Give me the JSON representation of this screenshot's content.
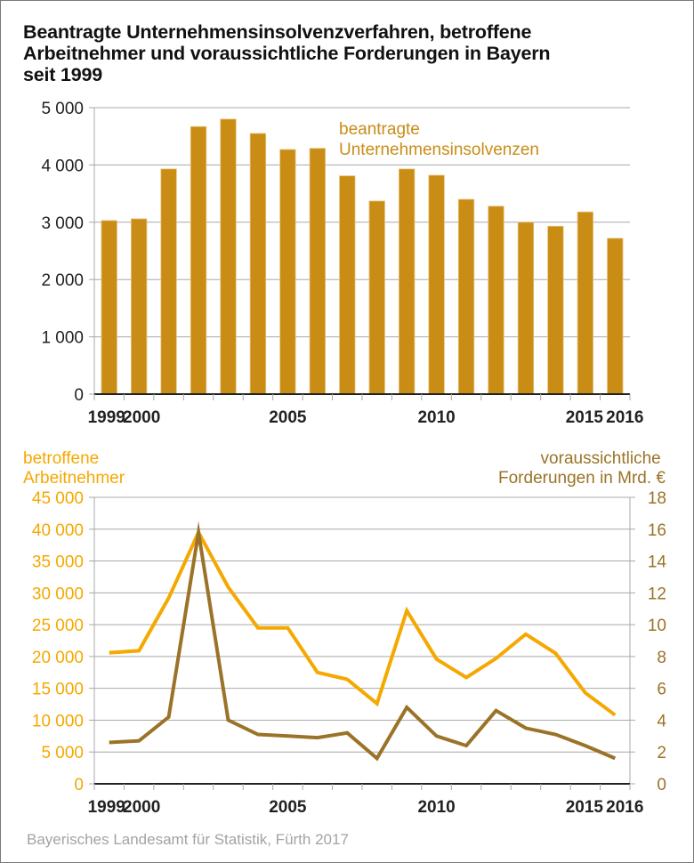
{
  "title_lines": [
    "Beantragte Unternehmensinsolvenzverfahren, betroffene",
    "Arbeitnehmer und voraussichtliche Forderungen in Bayern",
    "seit 1999"
  ],
  "source": "Bayerisches Landesamt für Statistik, Fürth 2017",
  "colors": {
    "bars": "#C98D16",
    "bar_edge": "#E8C27A",
    "employees_line": "#F5A800",
    "claims_line": "#9B7328",
    "grid": "#a8a8a8",
    "axis": "#222222",
    "tick_text": "#222222"
  },
  "chart_data": [
    {
      "type": "bar",
      "title": "Beantragte Unternehmensinsolvenzverfahren in Bayern seit 1999",
      "series_label_lines": [
        "beantragte",
        "Unternehmensinsolvenzen"
      ],
      "categories": [
        "1999",
        "2000",
        "2001",
        "2002",
        "2003",
        "2004",
        "2005",
        "2006",
        "2007",
        "2008",
        "2009",
        "2010",
        "2011",
        "2012",
        "2013",
        "2014",
        "2015",
        "2016"
      ],
      "values": [
        3030,
        3060,
        3930,
        4670,
        4800,
        4550,
        4270,
        4290,
        3810,
        3370,
        3930,
        3820,
        3400,
        3280,
        3000,
        2930,
        3180,
        2720
      ],
      "xlabel": "",
      "ylabel": "",
      "ylim": [
        0,
        5000
      ],
      "yticks": [
        0,
        1000,
        2000,
        3000,
        4000,
        5000
      ],
      "ytick_labels": [
        "0",
        "1 000",
        "2 000",
        "3 000",
        "4 000",
        "5 000"
      ],
      "xtick_labels": [
        {
          "year": "1999",
          "label": "1999"
        },
        {
          "year": "2000",
          "label": "2000"
        },
        {
          "year": "2005",
          "label": "2005"
        },
        {
          "year": "2010",
          "label": "2010"
        },
        {
          "year": "2015",
          "label": "2015"
        },
        {
          "year": "2016",
          "label": "2016"
        }
      ],
      "grid": true,
      "legend": "top-right"
    },
    {
      "type": "line",
      "title": "Betroffene Arbeitnehmer und voraussichtliche Forderungen",
      "x": [
        "1999",
        "2000",
        "2001",
        "2002",
        "2003",
        "2004",
        "2005",
        "2006",
        "2007",
        "2008",
        "2009",
        "2010",
        "2011",
        "2012",
        "2013",
        "2014",
        "2015",
        "2016"
      ],
      "series": [
        {
          "name": "betroffene Arbeitnehmer",
          "axis": "left",
          "label_lines": [
            "betroffene",
            "Arbeitnehmer"
          ],
          "values": [
            20600,
            20900,
            29200,
            39500,
            30900,
            24500,
            24500,
            17500,
            16400,
            12600,
            27200,
            19600,
            16700,
            19700,
            23500,
            20500,
            14300,
            10800
          ]
        },
        {
          "name": "voraussichtliche Forderungen in Mrd. €",
          "axis": "right",
          "label_lines": [
            "voraussichtliche",
            "Forderungen in Mrd. €"
          ],
          "values": [
            2.6,
            2.7,
            4.2,
            15.8,
            4.0,
            3.1,
            3.0,
            2.9,
            3.2,
            1.6,
            4.8,
            3.0,
            2.4,
            4.6,
            3.5,
            3.1,
            2.4,
            1.6
          ]
        }
      ],
      "ylim_left": [
        0,
        45000
      ],
      "ylim_right": [
        0,
        18
      ],
      "yticks_left": [
        0,
        5000,
        10000,
        15000,
        20000,
        25000,
        30000,
        35000,
        40000,
        45000
      ],
      "ytick_labels_left": [
        "0",
        "5 000",
        "10 000",
        "15 000",
        "20 000",
        "25 000",
        "30 000",
        "35 000",
        "40 000",
        "45 000"
      ],
      "yticks_right": [
        0,
        2,
        4,
        6,
        8,
        10,
        12,
        14,
        16,
        18
      ],
      "ytick_labels_right": [
        "0",
        "2",
        "4",
        "6",
        "8",
        "10",
        "12",
        "14",
        "16",
        "18"
      ],
      "xtick_labels": [
        {
          "year": "1999",
          "label": "1999"
        },
        {
          "year": "2000",
          "label": "2000"
        },
        {
          "year": "2005",
          "label": "2005"
        },
        {
          "year": "2010",
          "label": "2010"
        },
        {
          "year": "2015",
          "label": "2015"
        },
        {
          "year": "2016",
          "label": "2016"
        }
      ],
      "grid": true,
      "legend": "top-left and top-right axis titles"
    }
  ]
}
